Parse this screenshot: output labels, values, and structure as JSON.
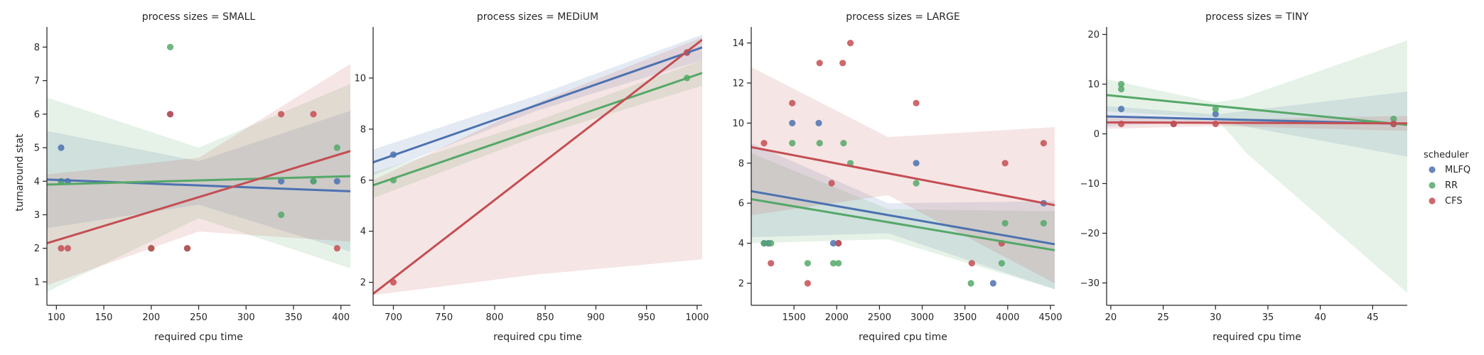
{
  "figure": {
    "ylabel": "turnaround stat",
    "xlabel": "required cpu time",
    "legend": {
      "title": "scheduler",
      "entries": [
        {
          "name": "MLFQ",
          "color": "#4c72b0"
        },
        {
          "name": "RR",
          "color": "#55a868"
        },
        {
          "name": "CFS",
          "color": "#c44e52"
        }
      ],
      "placement": "right"
    }
  },
  "chart_data": [
    {
      "type": "scatter",
      "title": "process sizes = SMALL",
      "xlabel": "required cpu time",
      "ylabel": "turnaround stat",
      "xlim": [
        90,
        410
      ],
      "ylim": [
        0.3,
        8.6
      ],
      "xticks": [
        100,
        150,
        200,
        250,
        300,
        350,
        400
      ],
      "yticks": [
        1,
        2,
        3,
        4,
        5,
        6,
        7,
        8
      ],
      "series": [
        {
          "name": "MLFQ",
          "color": "#4c72b0",
          "points": [
            [
              105,
              5
            ],
            [
              105,
              4
            ],
            [
              112,
              4
            ],
            [
              200,
              2
            ],
            [
              220,
              6
            ],
            [
              238,
              2
            ],
            [
              337,
              4
            ],
            [
              371,
              4
            ],
            [
              396,
              4
            ]
          ],
          "fit": [
            [
              90,
              4.05
            ],
            [
              410,
              3.7
            ]
          ],
          "band_upper": [
            [
              90,
              5.5
            ],
            [
              250,
              4.6
            ],
            [
              410,
              6.1
            ]
          ],
          "band_lower": [
            [
              90,
              2.6
            ],
            [
              250,
              3.3
            ],
            [
              410,
              1.9
            ]
          ]
        },
        {
          "name": "RR",
          "color": "#55a868",
          "points": [
            [
              105,
              4
            ],
            [
              200,
              2
            ],
            [
              220,
              8
            ],
            [
              238,
              2
            ],
            [
              337,
              3
            ],
            [
              371,
              4
            ],
            [
              396,
              5
            ]
          ],
          "fit": [
            [
              90,
              3.9
            ],
            [
              410,
              4.15
            ]
          ],
          "band_upper": [
            [
              90,
              6.5
            ],
            [
              250,
              5.0
            ],
            [
              410,
              6.9
            ]
          ],
          "band_lower": [
            [
              90,
              0.7
            ],
            [
              250,
              2.9
            ],
            [
              410,
              1.4
            ]
          ]
        },
        {
          "name": "CFS",
          "color": "#c44e52",
          "points": [
            [
              105,
              2
            ],
            [
              112,
              2
            ],
            [
              200,
              2
            ],
            [
              220,
              6
            ],
            [
              238,
              2
            ],
            [
              337,
              6
            ],
            [
              371,
              6
            ],
            [
              396,
              2
            ]
          ],
          "fit": [
            [
              90,
              2.15
            ],
            [
              410,
              4.9
            ]
          ],
          "band_upper": [
            [
              90,
              4.2
            ],
            [
              250,
              4.7
            ],
            [
              410,
              7.5
            ]
          ],
          "band_lower": [
            [
              90,
              0.9
            ],
            [
              250,
              2.5
            ],
            [
              410,
              2.2
            ]
          ]
        }
      ]
    },
    {
      "type": "scatter",
      "title": "process sizes = MEDiUM",
      "xlabel": "required cpu time",
      "ylabel": "",
      "xlim": [
        680,
        1005
      ],
      "ylim": [
        1.1,
        12.0
      ],
      "xticks": [
        700,
        750,
        800,
        850,
        900,
        950,
        1000
      ],
      "yticks": [
        2,
        4,
        6,
        8,
        10
      ],
      "series": [
        {
          "name": "MLFQ",
          "color": "#4c72b0",
          "points": [
            [
              700,
              7
            ],
            [
              990,
              11
            ]
          ],
          "fit": [
            [
              680,
              6.7
            ],
            [
              1005,
              11.2
            ]
          ],
          "band_upper": [
            [
              680,
              7.2
            ],
            [
              840,
              9.3
            ],
            [
              1005,
              11.7
            ]
          ],
          "band_lower": [
            [
              680,
              6.2
            ],
            [
              840,
              8.7
            ],
            [
              1005,
              10.7
            ]
          ]
        },
        {
          "name": "RR",
          "color": "#55a868",
          "points": [
            [
              700,
              6
            ],
            [
              990,
              10
            ]
          ],
          "fit": [
            [
              680,
              5.8
            ],
            [
              1005,
              10.2
            ]
          ],
          "band_upper": [
            [
              680,
              6.3
            ],
            [
              840,
              8.3
            ],
            [
              1005,
              10.7
            ]
          ],
          "band_lower": [
            [
              680,
              5.3
            ],
            [
              840,
              7.7
            ],
            [
              1005,
              9.7
            ]
          ]
        },
        {
          "name": "CFS",
          "color": "#c44e52",
          "points": [
            [
              700,
              2
            ],
            [
              990,
              11
            ]
          ],
          "fit": [
            [
              680,
              1.55
            ],
            [
              1005,
              11.5
            ]
          ],
          "band_upper": [
            [
              680,
              6.0
            ],
            [
              840,
              9.0
            ],
            [
              1005,
              11.6
            ]
          ],
          "band_lower": [
            [
              680,
              1.5
            ],
            [
              840,
              2.3
            ],
            [
              1005,
              2.9
            ]
          ]
        }
      ]
    },
    {
      "type": "scatter",
      "title": "process sizes = LARGE",
      "xlabel": "required cpu time",
      "ylabel": "",
      "xlim": [
        1000,
        4550
      ],
      "ylim": [
        0.9,
        14.8
      ],
      "xticks": [
        1500,
        2000,
        2500,
        3000,
        3500,
        4000,
        4500
      ],
      "yticks": [
        2,
        4,
        6,
        8,
        10,
        12,
        14
      ],
      "series": [
        {
          "name": "MLFQ",
          "color": "#4c72b0",
          "points": [
            [
              1150,
              4
            ],
            [
              1200,
              4
            ],
            [
              1480,
              10
            ],
            [
              1790,
              10
            ],
            [
              1960,
              4
            ],
            [
              2020,
              4
            ],
            [
              2930,
              8
            ],
            [
              3830,
              2
            ],
            [
              4420,
              6
            ]
          ],
          "fit": [
            [
              1000,
              6.6
            ],
            [
              4550,
              3.95
            ]
          ],
          "band_upper": [
            [
              1000,
              9.0
            ],
            [
              2600,
              6.0
            ],
            [
              4550,
              6.1
            ]
          ],
          "band_lower": [
            [
              1000,
              4.3
            ],
            [
              2600,
              4.5
            ],
            [
              4550,
              1.7
            ]
          ]
        },
        {
          "name": "RR",
          "color": "#55a868",
          "points": [
            [
              1150,
              4
            ],
            [
              1230,
              4
            ],
            [
              1480,
              9
            ],
            [
              1660,
              3
            ],
            [
              1800,
              9
            ],
            [
              1960,
              3
            ],
            [
              2020,
              3
            ],
            [
              2080,
              9
            ],
            [
              2160,
              8
            ],
            [
              2930,
              7
            ],
            [
              3570,
              2
            ],
            [
              3930,
              3
            ],
            [
              3970,
              5
            ],
            [
              4420,
              5
            ]
          ],
          "fit": [
            [
              1000,
              6.2
            ],
            [
              4550,
              3.65
            ]
          ],
          "band_upper": [
            [
              1000,
              8.5
            ],
            [
              2600,
              5.7
            ],
            [
              4550,
              5.6
            ]
          ],
          "band_lower": [
            [
              1000,
              4.0
            ],
            [
              2600,
              4.2
            ],
            [
              4550,
              1.7
            ]
          ]
        },
        {
          "name": "CFS",
          "color": "#c44e52",
          "points": [
            [
              1150,
              9
            ],
            [
              1230,
              3
            ],
            [
              1480,
              11
            ],
            [
              1660,
              2
            ],
            [
              1800,
              13
            ],
            [
              1940,
              7
            ],
            [
              2020,
              4
            ],
            [
              2070,
              13
            ],
            [
              2160,
              14
            ],
            [
              2930,
              11
            ],
            [
              3580,
              3
            ],
            [
              3930,
              4
            ],
            [
              3970,
              8
            ],
            [
              4420,
              9
            ]
          ],
          "fit": [
            [
              1000,
              8.8
            ],
            [
              4550,
              5.9
            ]
          ],
          "band_upper": [
            [
              1000,
              12.8
            ],
            [
              2600,
              9.3
            ],
            [
              4550,
              9.8
            ]
          ],
          "band_lower": [
            [
              1000,
              5.4
            ],
            [
              2600,
              6.4
            ],
            [
              4550,
              2.0
            ]
          ]
        }
      ]
    },
    {
      "type": "scatter",
      "title": "process sizes = TINY",
      "xlabel": "required cpu time",
      "ylabel": "",
      "xlim": [
        19.6,
        48.3
      ],
      "ylim": [
        -34.5,
        21.5
      ],
      "xticks": [
        20,
        25,
        30,
        35,
        40,
        45
      ],
      "yticks": [
        -30,
        -20,
        -10,
        0,
        10,
        20
      ],
      "series": [
        {
          "name": "MLFQ",
          "color": "#4c72b0",
          "points": [
            [
              21,
              5
            ],
            [
              26,
              2
            ],
            [
              30,
              4
            ],
            [
              47,
              2
            ]
          ],
          "fit": [
            [
              19.6,
              3.5
            ],
            [
              48.3,
              2.0
            ]
          ],
          "band_upper": [
            [
              19.6,
              5.6
            ],
            [
              30,
              3.9
            ],
            [
              48.3,
              8.5
            ]
          ],
          "band_lower": [
            [
              19.6,
              1.5
            ],
            [
              30,
              2.6
            ],
            [
              48.3,
              -4.6
            ]
          ]
        },
        {
          "name": "RR",
          "color": "#55a868",
          "points": [
            [
              21,
              10
            ],
            [
              21,
              9
            ],
            [
              30,
              5
            ],
            [
              47,
              3
            ]
          ],
          "fit": [
            [
              19.6,
              7.8
            ],
            [
              48.3,
              1.8
            ]
          ],
          "band_upper": [
            [
              19.6,
              11.0
            ],
            [
              30,
              6.3
            ],
            [
              32.5,
              7.2
            ],
            [
              48.3,
              18.8
            ]
          ],
          "band_lower": [
            [
              19.6,
              4.5
            ],
            [
              30,
              3.3
            ],
            [
              33,
              -4.0
            ],
            [
              48.3,
              -32.0
            ]
          ]
        },
        {
          "name": "CFS",
          "color": "#c44e52",
          "points": [
            [
              21,
              2
            ],
            [
              26,
              2
            ],
            [
              30,
              2
            ],
            [
              47,
              2
            ]
          ],
          "fit": [
            [
              19.6,
              2.3
            ],
            [
              48.3,
              2.1
            ]
          ],
          "band_upper": [
            [
              19.6,
              3.5
            ],
            [
              30,
              2.9
            ],
            [
              48.3,
              3.6
            ]
          ],
          "band_lower": [
            [
              19.6,
              1.0
            ],
            [
              30,
              1.6
            ],
            [
              48.3,
              0.6
            ]
          ]
        }
      ]
    }
  ]
}
